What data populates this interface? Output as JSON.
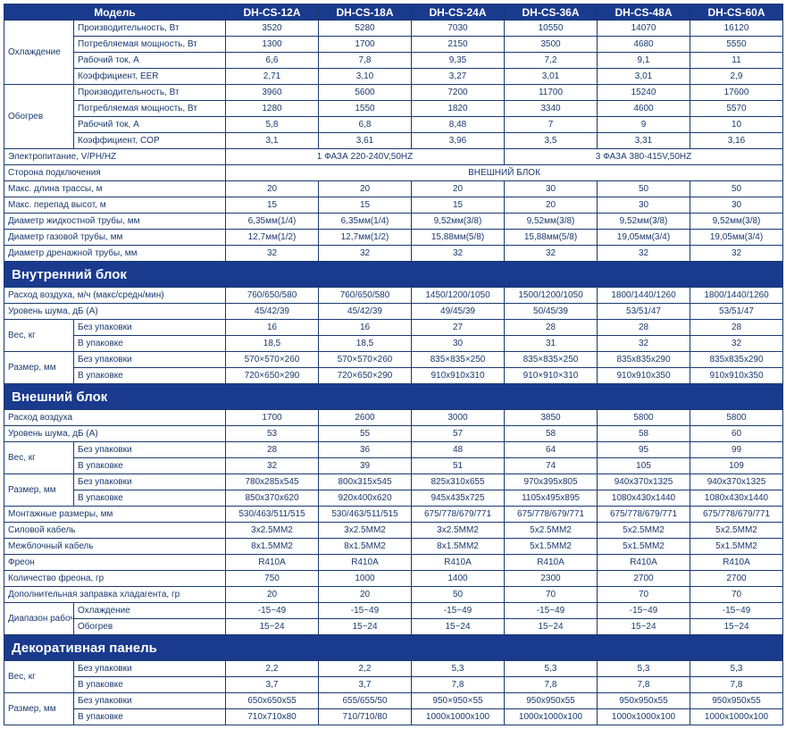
{
  "models": [
    "DH-CS-12A",
    "DH-CS-18A",
    "DH-CS-24A",
    "DH-CS-36A",
    "DH-CS-48A",
    "DH-CS-60A"
  ],
  "s1": {
    "title": "Модель",
    "g1": {
      "name": "Охлаждение",
      "rows": [
        [
          "Производительность, Вт",
          "3520",
          "5280",
          "7030",
          "10550",
          "14070",
          "16120"
        ],
        [
          "Потребляемая мощность, Вт",
          "1300",
          "1700",
          "2150",
          "3500",
          "4680",
          "5550"
        ],
        [
          "Рабочий ток, А",
          "6,6",
          "7,8",
          "9,35",
          "7,2",
          "9,1",
          "11"
        ],
        [
          "Коэффициент, EER",
          "2,71",
          "3,10",
          "3,27",
          "3,01",
          "3,01",
          "2,9"
        ]
      ]
    },
    "g2": {
      "name": "Обогрев",
      "rows": [
        [
          "Производительность, Вт",
          "3960",
          "5600",
          "7200",
          "11700",
          "15240",
          "17600"
        ],
        [
          "Потребляемая мощность, Вт",
          "1280",
          "1550",
          "1820",
          "3340",
          "4600",
          "5570"
        ],
        [
          "Рабочий ток, А",
          "5,8",
          "6,8",
          "8,48",
          "7",
          "9",
          "10"
        ],
        [
          "Коэффициент, COP",
          "3,1",
          "3,61",
          "3,96",
          "3,5",
          "3,31",
          "3,16"
        ]
      ]
    },
    "power": {
      "label": "Электропитание, V/PH/HZ",
      "v1": "1 ФАЗА 220-240V,50HZ",
      "v2": "3 ФАЗА 380-415V,50HZ"
    },
    "side": {
      "label": "Сторона подключения",
      "v": "ВНЕШНИЙ БЛОК"
    },
    "rows": [
      [
        "Макс. длина трассы, м",
        "20",
        "20",
        "20",
        "30",
        "50",
        "50"
      ],
      [
        "Макс. перепад высот, м",
        "15",
        "15",
        "15",
        "20",
        "30",
        "30"
      ],
      [
        "Диаметр жидкостной трубы, мм",
        "6,35мм(1/4)",
        "6,35мм(1/4)",
        "9,52мм(3/8)",
        "9,52мм(3/8)",
        "9,52мм(3/8)",
        "9,52мм(3/8)"
      ],
      [
        "Диаметр газовой трубы, мм",
        "12,7мм(1/2)",
        "12,7мм(1/2)",
        "15,88мм(5/8)",
        "15,88мм(5/8)",
        "19,05мм(3/4)",
        "19,05мм(3/4)"
      ],
      [
        "Диаметр дренажной трубы, мм",
        "32",
        "32",
        "32",
        "32",
        "32",
        "32"
      ]
    ]
  },
  "s2": {
    "title": "Внутренний блок",
    "rows": [
      [
        "Расход воздуха, м/ч (макс/средн/мин)",
        "760/650/580",
        "760/650/580",
        "1450/1200/1050",
        "1500/1200/1050",
        "1800/1440/1260",
        "1800/1440/1260"
      ],
      [
        "Уровень шума, дБ (А)",
        "45/42/39",
        "45/42/39",
        "49/45/39",
        "50/45/39",
        "53/51/47",
        "53/51/47"
      ]
    ],
    "g1": {
      "name": "Вес, кг",
      "rows": [
        [
          "Без упаковки",
          "16",
          "16",
          "27",
          "28",
          "28",
          "28"
        ],
        [
          "В упаковке",
          "18,5",
          "18,5",
          "30",
          "31",
          "32",
          "32"
        ]
      ]
    },
    "g2": {
      "name": "Размер, мм",
      "rows": [
        [
          "Без упаковки",
          "570×570×260",
          "570×570×260",
          "835×835×250",
          "835×835×250",
          "835x835x290",
          "835x835x290"
        ],
        [
          "В упаковке",
          "720×650×290",
          "720×650×290",
          "910x910x310",
          "910×910×310",
          "910x910x350",
          "910x910x350"
        ]
      ]
    }
  },
  "s3": {
    "title": "Внешний блок",
    "rows": [
      [
        "Расход воздуха",
        "1700",
        "2600",
        "3000",
        "3850",
        "5800",
        "5800"
      ],
      [
        "Уровень шума, дБ (А)",
        "53",
        "55",
        "57",
        "58",
        "58",
        "60"
      ]
    ],
    "g1": {
      "name": "Вес, кг",
      "rows": [
        [
          "Без упаковки",
          "28",
          "36",
          "48",
          "64",
          "95",
          "99"
        ],
        [
          "В упаковке",
          "32",
          "39",
          "51",
          "74",
          "105",
          "109"
        ]
      ]
    },
    "g2": {
      "name": "Размер, мм",
      "rows": [
        [
          "Без упаковки",
          "780x285x545",
          "800x315x545",
          "825x310x655",
          "970x395x805",
          "940x370x1325",
          "940x370x1325"
        ],
        [
          "В упаковке",
          "850x370x620",
          "920x400x620",
          "945x435x725",
          "1105x495x895",
          "1080x430x1440",
          "1080x430x1440"
        ]
      ]
    },
    "rows2": [
      [
        "Монтажные размеры, мм",
        "530/463/511/515",
        "530/463/511/515",
        "675/778/679/771",
        "675/778/679/771",
        "675/778/679/771",
        "675/778/679/771"
      ],
      [
        "Силовой кабель",
        "3x2.5MM2",
        "3x2.5MM2",
        "3x2.5MM2",
        "5x2.5MM2",
        "5x2.5MM2",
        "5x2.5MM2"
      ],
      [
        "Межблочный кабель",
        "8x1.5MM2",
        "8x1.5MM2",
        "8x1.5MM2",
        "5x1.5MM2",
        "5x1.5MM2",
        "5x1.5MM2"
      ],
      [
        "Фреон",
        "R410A",
        "R410A",
        "R410A",
        "R410A",
        "R410A",
        "R410A"
      ],
      [
        "Количество фреона, гр",
        "750",
        "1000",
        "1400",
        "2300",
        "2700",
        "2700"
      ],
      [
        "Дополнительная заправка хладагента, гр",
        "20",
        "20",
        "50",
        "70",
        "70",
        "70"
      ]
    ],
    "g3": {
      "name": "Диапазон рабочих температур,˚С",
      "rows": [
        [
          "Охлаждение",
          "-15~49",
          "-15~49",
          "-15~49",
          "-15~49",
          "-15~49",
          "-15~49"
        ],
        [
          "Обогрев",
          "15~24",
          "15~24",
          "15~24",
          "15~24",
          "15~24",
          "15~24"
        ]
      ]
    }
  },
  "s4": {
    "title": "Декоративная панель",
    "g1": {
      "name": "Вес, кг",
      "rows": [
        [
          "Без упаковки",
          "2,2",
          "2,2",
          "5,3",
          "5,3",
          "5,3",
          "5,3"
        ],
        [
          "В упаковке",
          "3,7",
          "3,7",
          "7,8",
          "7,8",
          "7,8",
          "7,8"
        ]
      ]
    },
    "g2": {
      "name": "Размер, мм",
      "rows": [
        [
          "Без упаковки",
          "650x650x55",
          "655/655/50",
          "950×950×55",
          "950x950x55",
          "950x950x55",
          "950x950x55"
        ],
        [
          "В упаковке",
          "710x710x80",
          "710/710/80",
          "1000x1000x100",
          "1000x1000x100",
          "1000x1000x100",
          "1000x1000x100"
        ]
      ]
    }
  }
}
